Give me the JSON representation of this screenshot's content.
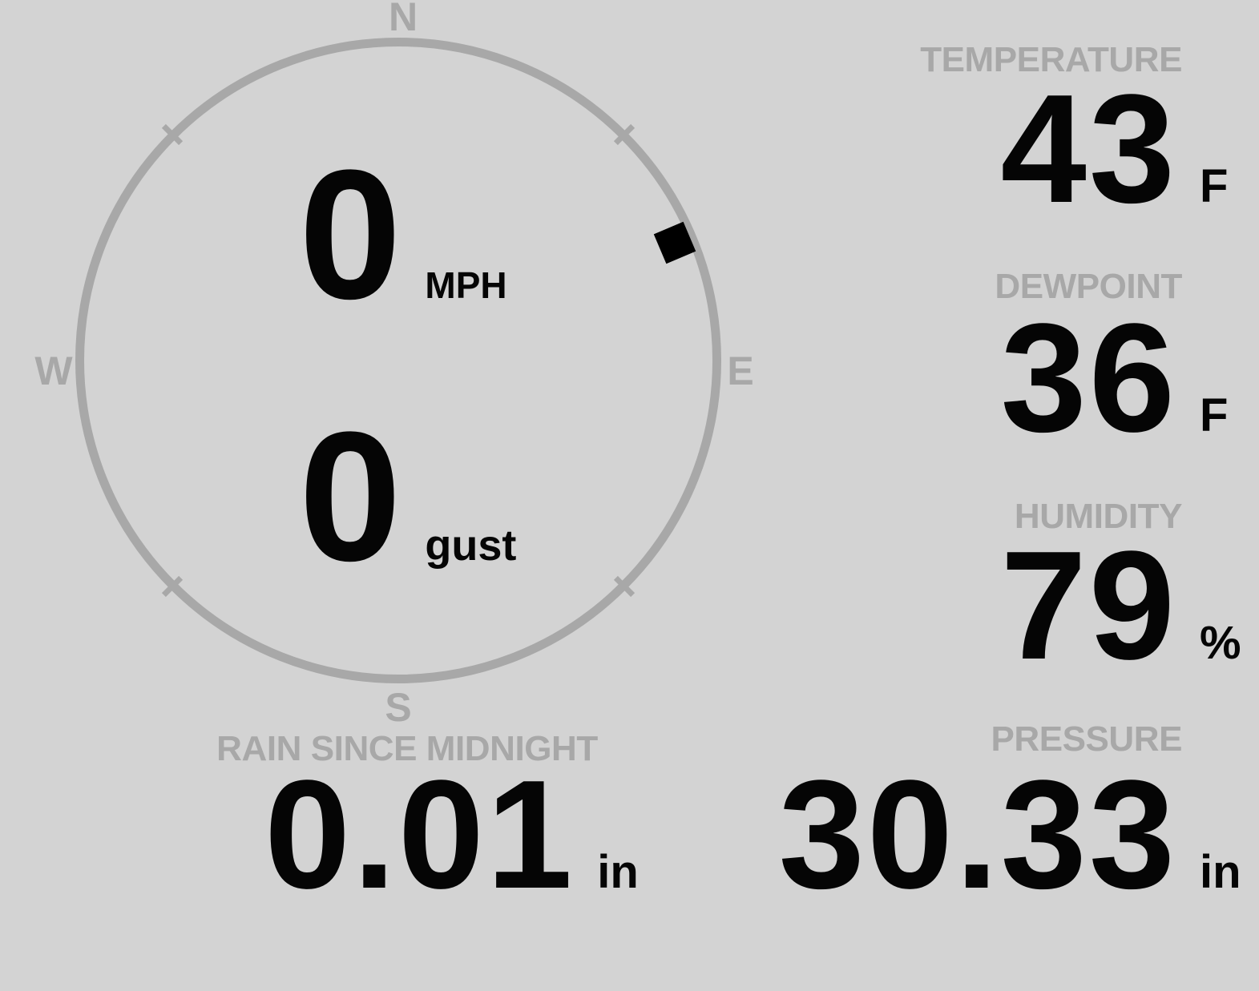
{
  "theme": {
    "background_color": "#d3d3d3",
    "muted_color": "#a8a8a8",
    "value_color": "#050505"
  },
  "wind": {
    "speed": "0",
    "speed_unit": "MPH",
    "gust": "0",
    "gust_unit": "gust",
    "direction_deg": 67,
    "compass": {
      "north": "N",
      "south": "S",
      "east": "E",
      "west": "W"
    }
  },
  "metrics": {
    "temperature": {
      "label": "TEMPERATURE",
      "value": "43",
      "unit": "F"
    },
    "dewpoint": {
      "label": "DEWPOINT",
      "value": "36",
      "unit": "F"
    },
    "humidity": {
      "label": "HUMIDITY",
      "value": "79",
      "unit": "%"
    },
    "rain": {
      "label": "RAIN SINCE MIDNIGHT",
      "value": "0.01",
      "unit": "in"
    },
    "pressure": {
      "label": "PRESSURE",
      "value": "30.33",
      "unit": "in"
    }
  }
}
